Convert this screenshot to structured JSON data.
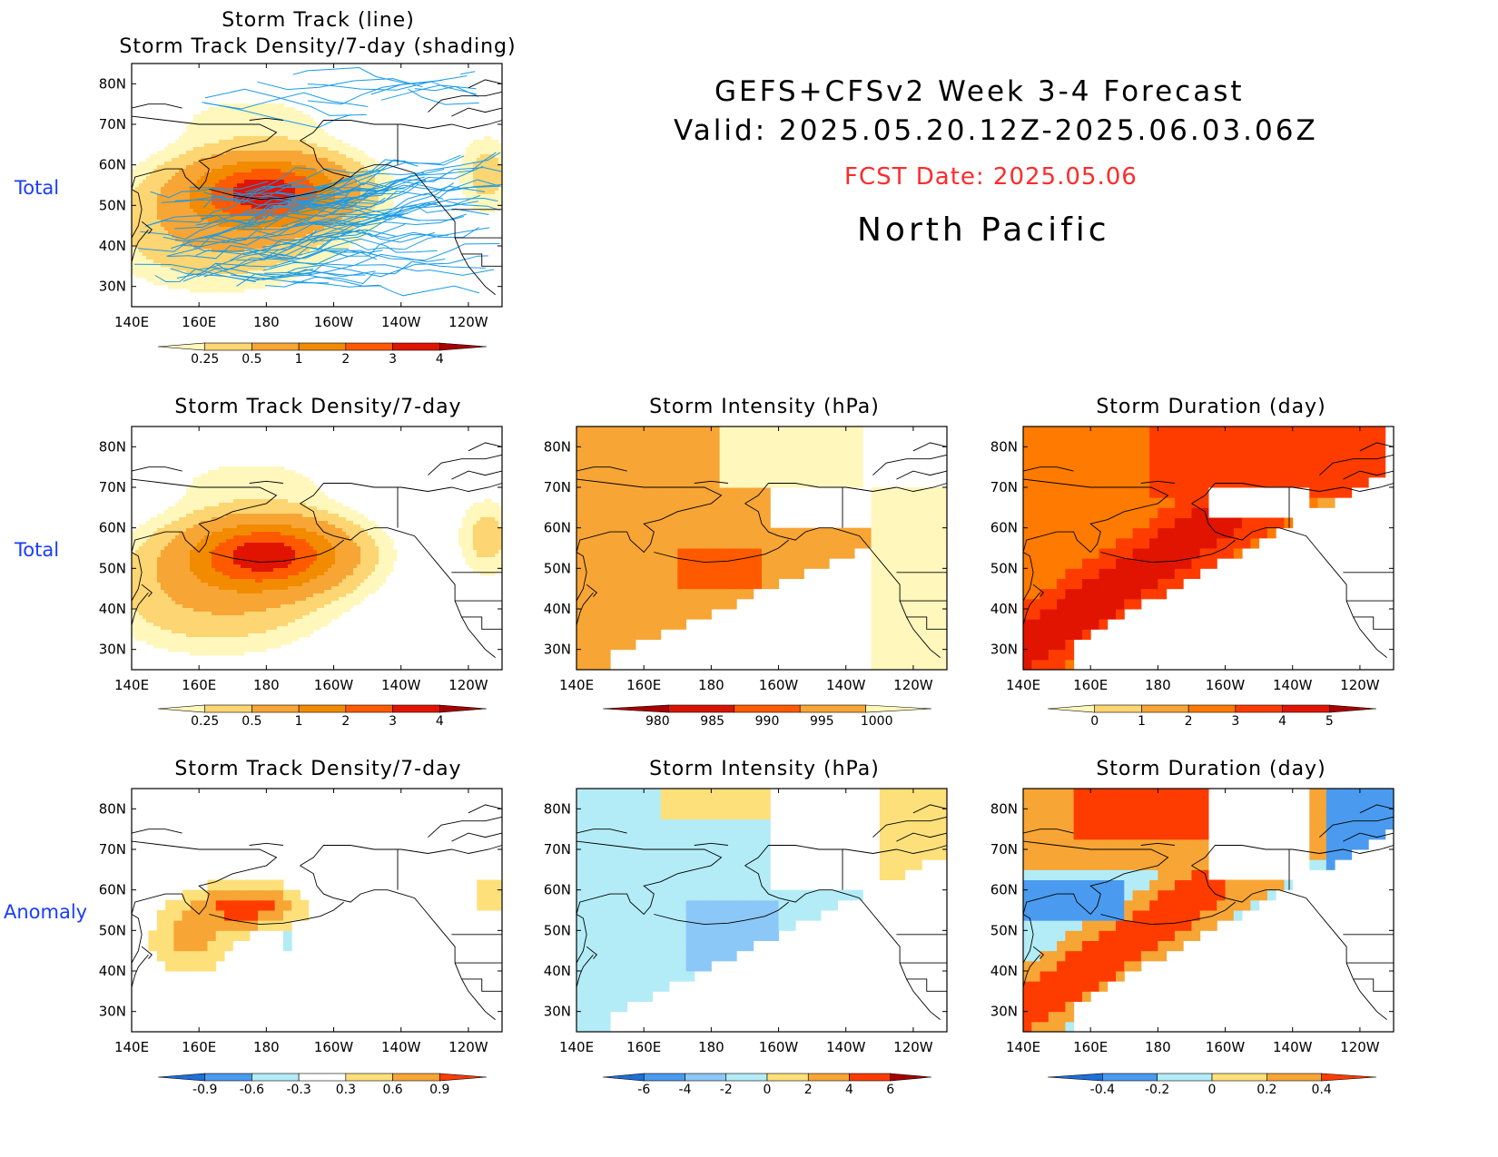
{
  "header": {
    "line1": "GEFS+CFSv2 Week 3-4 Forecast",
    "line2": "Valid: 2025.05.20.12Z-2025.06.03.06Z",
    "fcst": "FCST Date: 2025.05.06",
    "region": "North Pacific"
  },
  "row_labels": {
    "r0": "Total",
    "r1": "Total",
    "r2": "Anomaly"
  },
  "axis": {
    "lon_labels": [
      "140E",
      "160E",
      "180",
      "160W",
      "140W",
      "120W"
    ],
    "lat_labels": [
      "80N",
      "70N",
      "60N",
      "50N",
      "40N",
      "30N"
    ]
  },
  "panels": {
    "p0": {
      "title1": "Storm Track (line)",
      "title2": "Storm Track Density/7-day (shading)"
    },
    "p1": {
      "title": "Storm Track Density/7-day"
    },
    "p2": {
      "title": "Storm Intensity (hPa)"
    },
    "p3": {
      "title": "Storm Duration (day)"
    },
    "p4": {
      "title": "Storm Track Density/7-day"
    },
    "p5": {
      "title": "Storm Intensity (hPa)"
    },
    "p6": {
      "title": "Storm Duration (day)"
    }
  },
  "colorbars": {
    "density": {
      "labels": [
        "0.25",
        "0.5",
        "1",
        "2",
        "3",
        "4"
      ],
      "colors": [
        "#fff7bc",
        "#fdd572",
        "#f7a535",
        "#f28b00",
        "#ff5a00",
        "#e01400",
        "#a80000"
      ]
    },
    "intensity": {
      "labels": [
        "980",
        "985",
        "990",
        "995",
        "1000"
      ],
      "colors": [
        "#a80000",
        "#d81400",
        "#ff5a00",
        "#f7a535",
        "#fff7bc"
      ]
    },
    "duration": {
      "labels": [
        "0",
        "1",
        "2",
        "3",
        "4",
        "5"
      ],
      "colors": [
        "#fff7bc",
        "#fdd572",
        "#f7a535",
        "#ff7a00",
        "#ff3c00",
        "#e01400",
        "#a80000"
      ]
    },
    "density_anom": {
      "labels": [
        "-0.9",
        "-0.6",
        "-0.3",
        "0.3",
        "0.6",
        "0.9"
      ],
      "colors": [
        "#1e6fd9",
        "#4a9bef",
        "#b3ecf7",
        "#ffffff",
        "#fde07a",
        "#f7a535",
        "#ff3c00"
      ]
    },
    "intensity_anom": {
      "labels": [
        "-6",
        "-4",
        "-2",
        "0",
        "2",
        "4",
        "6"
      ],
      "colors": [
        "#1e6fd9",
        "#4a9bef",
        "#8cc8f7",
        "#b3ecf7",
        "#fde07a",
        "#f7a535",
        "#ff3c00",
        "#a80000"
      ]
    },
    "duration_anom": {
      "labels": [
        "-0.4",
        "-0.2",
        "0",
        "0.2",
        "0.4"
      ],
      "colors": [
        "#1e6fd9",
        "#4a9bef",
        "#b3ecf7",
        "#fde07a",
        "#f7a535",
        "#ff3c00"
      ]
    }
  }
}
